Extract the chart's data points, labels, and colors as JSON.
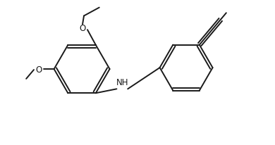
{
  "bg_color": "#ffffff",
  "line_color": "#1a1a1a",
  "text_color": "#1a1a1a",
  "line_width": 1.4,
  "font_size": 8.5,
  "figsize": [
    3.9,
    2.07
  ],
  "dpi": 100,
  "xlim": [
    0,
    390
  ],
  "ylim": [
    0,
    207
  ]
}
